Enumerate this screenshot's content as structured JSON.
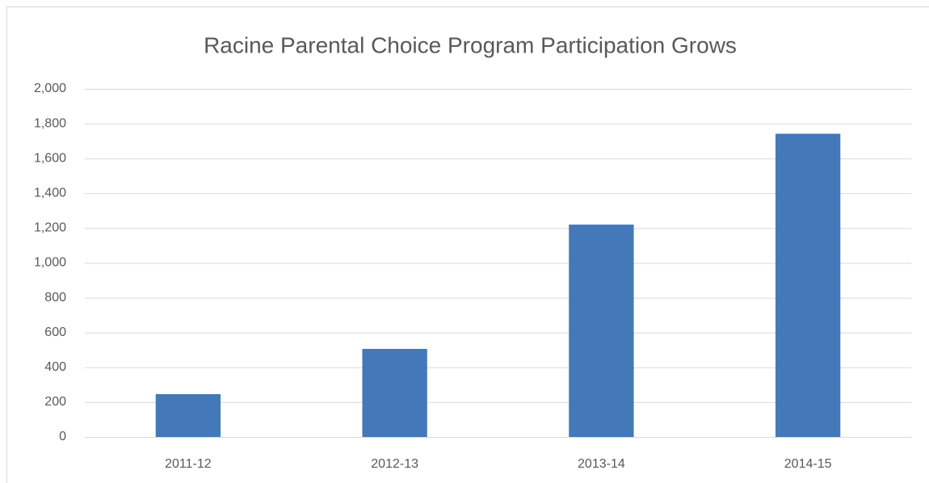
{
  "chart_data": {
    "type": "bar",
    "title": "Racine Parental Choice Program Participation Grows",
    "categories": [
      "2011-12",
      "2012-13",
      "2013-14",
      "2014-15"
    ],
    "values": [
      246,
      506,
      1220,
      1742
    ],
    "color": "#4379b8",
    "ylim": [
      0,
      2000
    ],
    "yticks": [
      0,
      200,
      400,
      600,
      800,
      {
        "value": 1000,
        "label": "1,000"
      },
      {
        "value": 1200,
        "label": "1,200"
      },
      {
        "value": 1400,
        "label": "1,400"
      },
      {
        "value": 1600,
        "label": "1,600"
      },
      {
        "value": 1800,
        "label": "1,800"
      },
      {
        "value": 2000,
        "label": "2,000"
      }
    ],
    "grid": true
  }
}
